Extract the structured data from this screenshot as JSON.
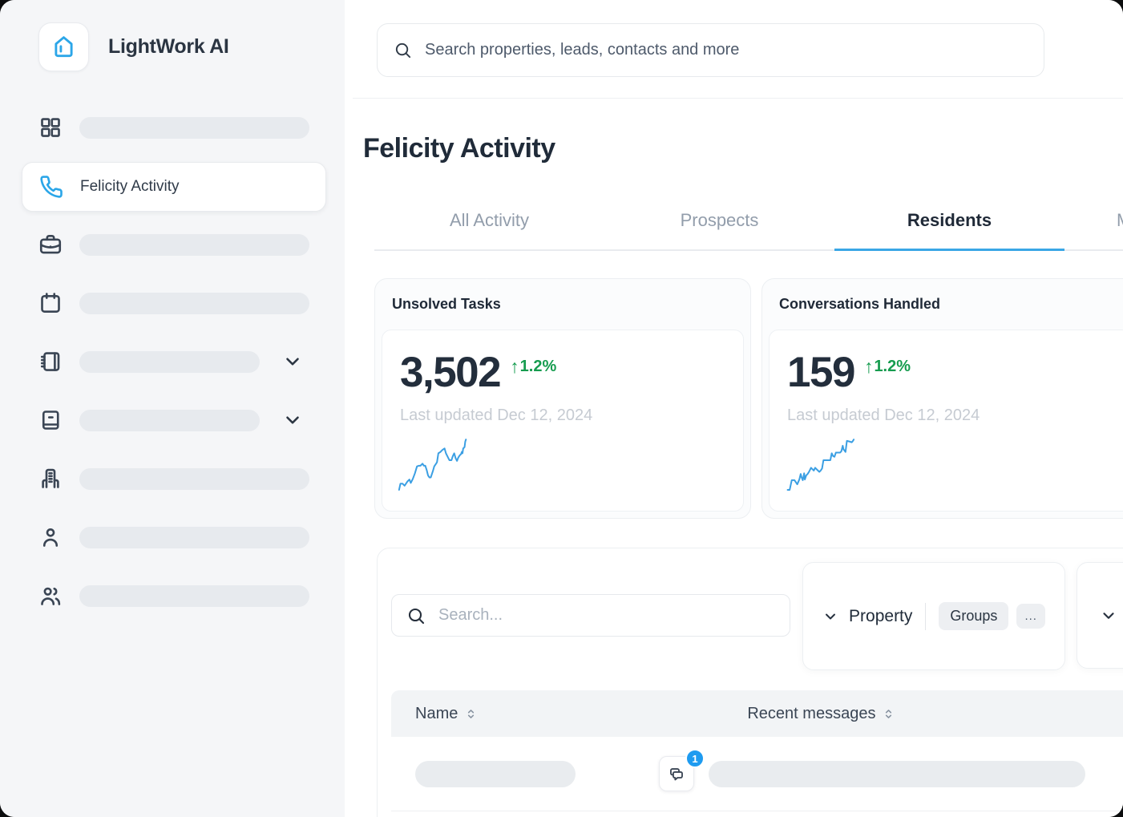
{
  "app": {
    "name": "LightWork AI"
  },
  "colors": {
    "brand_blue": "#2BA6E8",
    "sparkline_blue": "#3B9FE3",
    "tab_underline_blue": "#3AA7E6",
    "badge_blue": "#1E9BF0",
    "delta_green": "#169C4F",
    "dark_text": "#202B39",
    "muted_text": "#929DAB",
    "faint_text": "#C6CBD2",
    "placeholder_pill": "#E8EBEE",
    "sidebar_bg": "#F5F6F8"
  },
  "sidebar": {
    "app_name": "LightWork AI",
    "items": [
      {
        "icon": "grid-icon",
        "label": null,
        "placeholder": "full"
      },
      {
        "icon": "phone-icon",
        "label": "Felicity Activity",
        "active": true
      },
      {
        "icon": "briefcase-icon",
        "label": null,
        "placeholder": "full"
      },
      {
        "icon": "calendar-icon",
        "label": null,
        "placeholder": "full"
      },
      {
        "icon": "notebook-icon",
        "label": null,
        "placeholder": "short",
        "expandable": true
      },
      {
        "icon": "book-icon",
        "label": null,
        "placeholder": "short",
        "expandable": true
      },
      {
        "icon": "building-icon",
        "label": null,
        "placeholder": "full"
      },
      {
        "icon": "user-icon",
        "label": null,
        "placeholder": "full"
      },
      {
        "icon": "users-icon",
        "label": null,
        "placeholder": "full"
      }
    ]
  },
  "topbar": {
    "search_placeholder": "Search properties, leads, contacts and more"
  },
  "page": {
    "title": "Felicity Activity"
  },
  "tabs": {
    "items": [
      {
        "label": "All Activity",
        "active": false
      },
      {
        "label": "Prospects",
        "active": false
      },
      {
        "label": "Residents",
        "active": true
      },
      {
        "label": "M",
        "active": false,
        "clipped": true
      }
    ]
  },
  "chart_data": [
    {
      "type": "line",
      "title": "Unsolved Tasks",
      "value": "3,502",
      "delta_arrow": "↑",
      "delta": "1.2%",
      "delta_direction": "up",
      "updated": "Last updated Dec 12, 2024",
      "line_color": "#3B9FE3",
      "units": "percent-of-sparkline-area (x left→right, y top→bottom)",
      "points": [
        [
          1,
          86
        ],
        [
          3,
          77
        ],
        [
          6,
          77
        ],
        [
          9,
          80
        ],
        [
          13,
          74
        ],
        [
          16,
          71
        ],
        [
          18,
          76
        ],
        [
          21,
          70
        ],
        [
          24,
          62
        ],
        [
          27,
          52
        ],
        [
          30,
          51
        ],
        [
          32,
          51
        ],
        [
          35,
          48
        ],
        [
          37,
          51
        ],
        [
          39,
          51
        ],
        [
          41,
          57
        ],
        [
          43,
          65
        ],
        [
          45,
          68
        ],
        [
          47,
          68
        ],
        [
          50,
          59
        ],
        [
          52,
          52
        ],
        [
          54,
          49
        ],
        [
          56,
          46
        ],
        [
          58,
          33
        ],
        [
          61,
          31
        ],
        [
          64,
          28
        ],
        [
          67,
          26
        ],
        [
          69,
          33
        ],
        [
          72,
          39
        ],
        [
          74,
          43
        ],
        [
          77,
          43
        ],
        [
          79,
          37
        ],
        [
          81,
          33
        ],
        [
          83,
          40
        ],
        [
          85,
          44
        ],
        [
          87,
          39
        ],
        [
          89,
          36
        ],
        [
          91,
          34
        ],
        [
          92,
          31
        ],
        [
          93,
          33
        ],
        [
          94,
          26
        ],
        [
          96,
          24
        ],
        [
          97,
          16
        ],
        [
          98,
          13
        ]
      ]
    },
    {
      "type": "line",
      "title": "Conversations Handled",
      "value": "159",
      "delta_arrow": "↑",
      "delta": "1.2%",
      "delta_direction": "up",
      "updated": "Last updated Dec 12, 2024",
      "line_color": "#3B9FE3",
      "units": "percent-of-sparkline-area (x left→right, y top→bottom)",
      "points": [
        [
          3,
          86
        ],
        [
          6,
          86
        ],
        [
          9,
          72
        ],
        [
          13,
          72
        ],
        [
          17,
          78
        ],
        [
          20,
          71
        ],
        [
          22,
          63
        ],
        [
          23,
          67
        ],
        [
          25,
          72
        ],
        [
          27,
          62
        ],
        [
          28,
          71
        ],
        [
          30,
          65
        ],
        [
          32,
          63
        ],
        [
          34,
          60
        ],
        [
          37,
          54
        ],
        [
          39,
          56
        ],
        [
          41,
          58
        ],
        [
          43,
          54
        ],
        [
          45,
          56
        ],
        [
          47,
          58
        ],
        [
          49,
          60
        ],
        [
          51,
          58
        ],
        [
          53,
          55
        ],
        [
          55,
          43
        ],
        [
          59,
          43
        ],
        [
          63,
          43
        ],
        [
          65,
          43
        ],
        [
          67,
          33
        ],
        [
          69,
          37
        ],
        [
          71,
          38
        ],
        [
          73,
          32
        ],
        [
          76,
          32
        ],
        [
          79,
          32
        ],
        [
          81,
          30
        ],
        [
          83,
          22
        ],
        [
          84,
          27
        ],
        [
          87,
          31
        ],
        [
          89,
          15
        ],
        [
          93,
          16
        ],
        [
          96,
          17
        ],
        [
          97,
          16
        ],
        [
          99,
          13
        ]
      ]
    }
  ],
  "filter_bar": {
    "search_placeholder": "Search...",
    "property_label": "Property",
    "groups_label": "Groups",
    "more_label": "..."
  },
  "table": {
    "columns": [
      {
        "label": "Name",
        "sortable": true
      },
      {
        "label": "Recent messages",
        "sortable": true
      }
    ],
    "rows": [
      {
        "name": null,
        "recent_message": null,
        "unread_count": "1"
      }
    ]
  }
}
